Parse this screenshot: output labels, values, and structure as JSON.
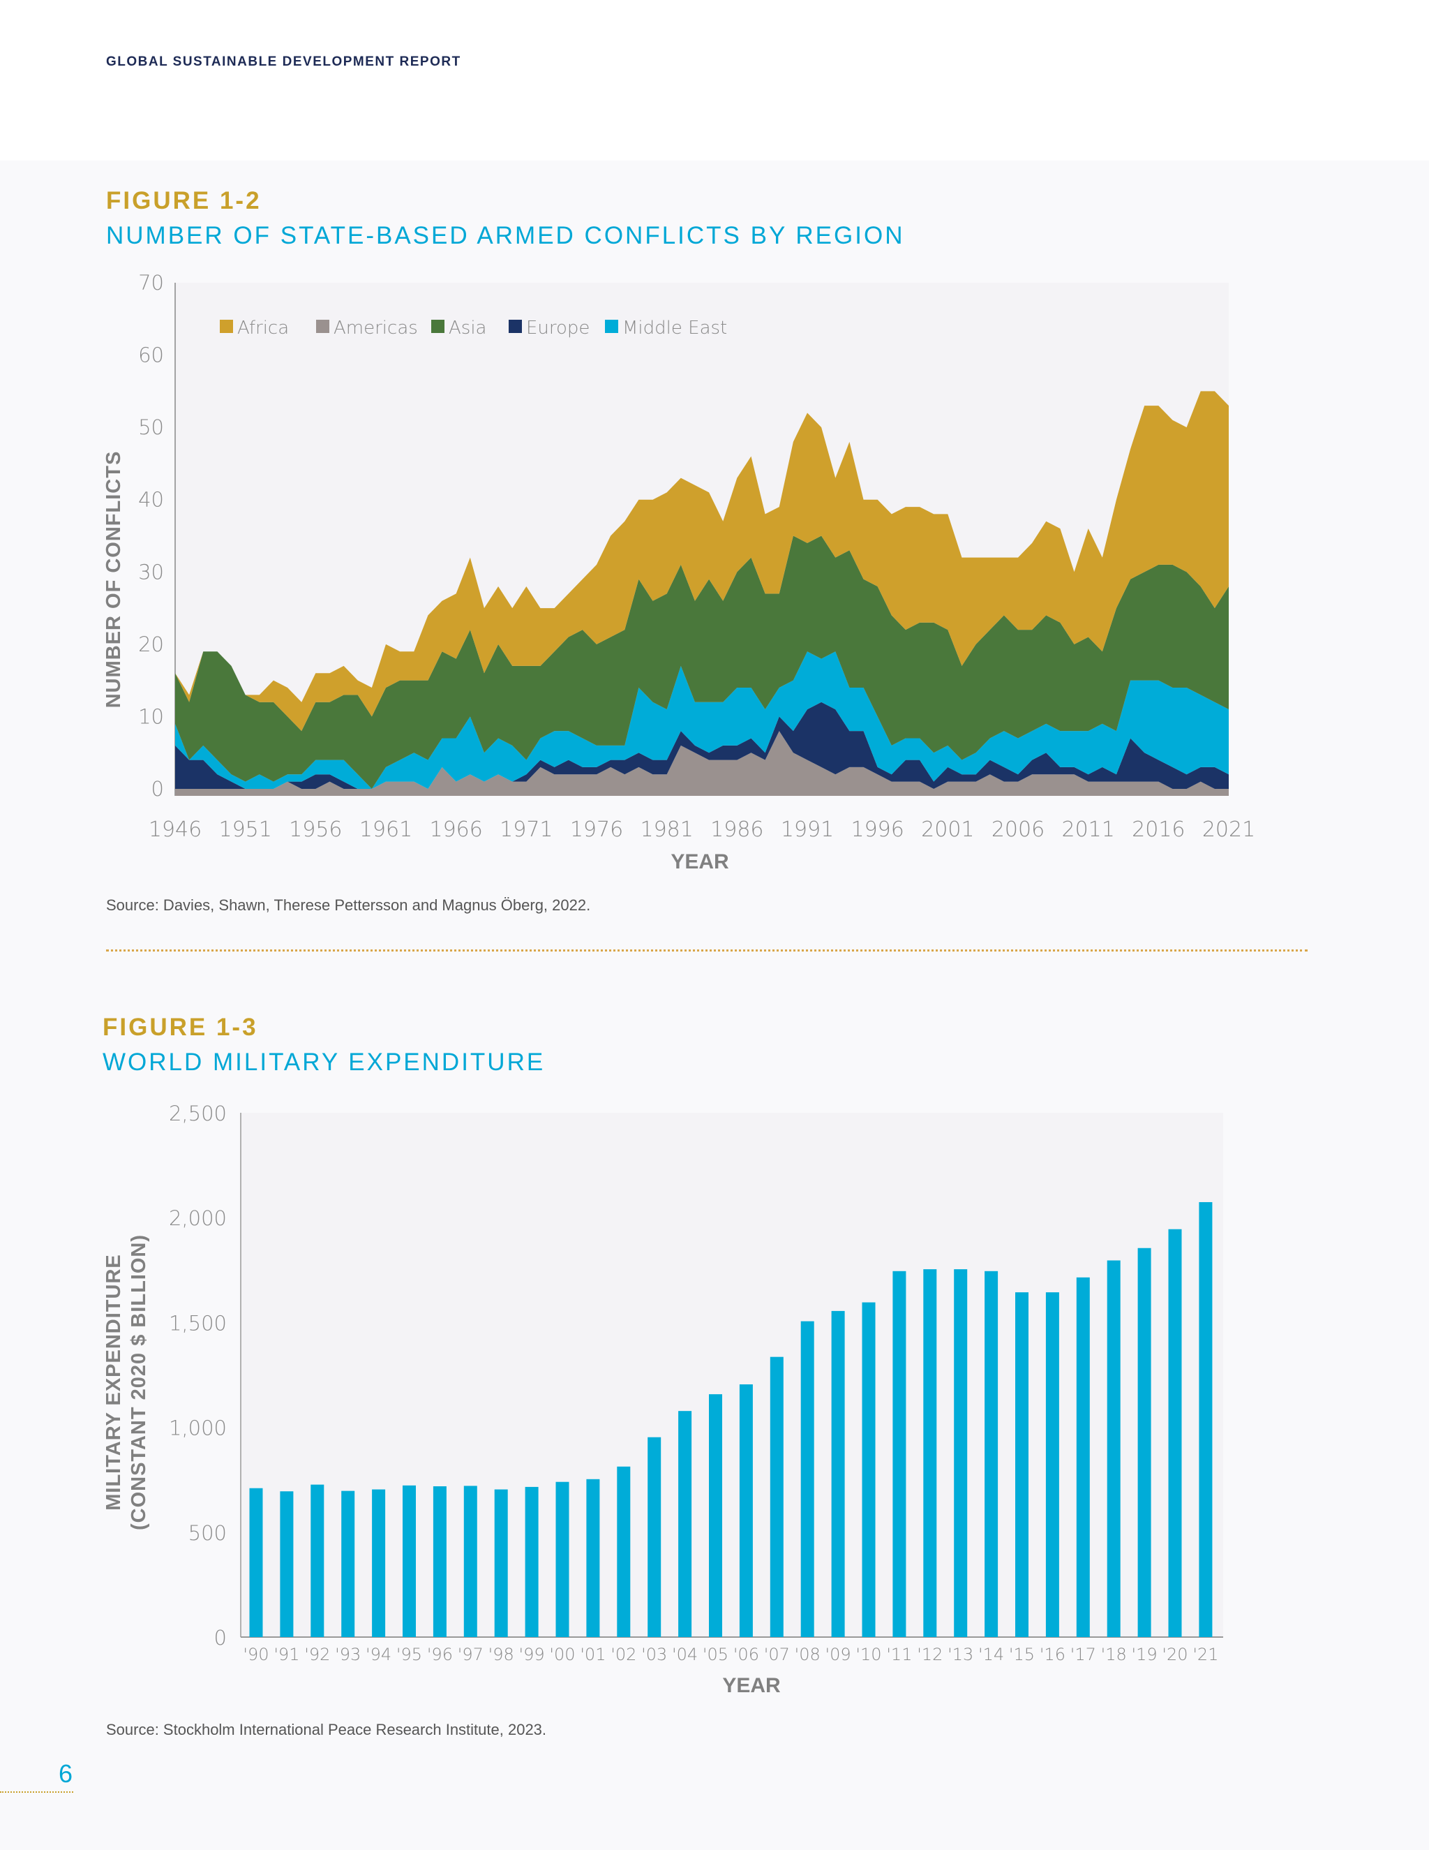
{
  "header": {
    "report_title": "GLOBAL SUSTAINABLE DEVELOPMENT REPORT"
  },
  "figure1": {
    "number": "FIGURE 1-2",
    "title": "NUMBER OF STATE-BASED ARMED CONFLICTS BY REGION",
    "source": "Source: Davies, Shawn, Therese Pettersson and Magnus Öberg, 2022."
  },
  "figure2": {
    "number": "FIGURE 1-3",
    "title": "WORLD MILITARY EXPENDITURE",
    "source": "Source: Stockholm International Peace Research Institute, 2023."
  },
  "page_number": "6",
  "chart_data": [
    {
      "type": "area",
      "stacked": true,
      "xlabel": "YEAR",
      "ylabel": "NUMBER OF CONFLICTS",
      "ylim": [
        0,
        70
      ],
      "xlim": [
        1946,
        2021
      ],
      "yticks": [
        "0",
        "10",
        "20",
        "30",
        "40",
        "50",
        "60",
        "70"
      ],
      "xticks": [
        "1946",
        "1951",
        "1956",
        "1961",
        "1966",
        "1971",
        "1976",
        "1981",
        "1986",
        "1991",
        "1996",
        "2001",
        "2006",
        "2011",
        "2016",
        "2021"
      ],
      "legend_position": "top-left",
      "grid": false,
      "x": [
        1946,
        1947,
        1948,
        1949,
        1950,
        1951,
        1952,
        1953,
        1954,
        1955,
        1956,
        1957,
        1958,
        1959,
        1960,
        1961,
        1962,
        1963,
        1964,
        1965,
        1966,
        1967,
        1968,
        1969,
        1970,
        1971,
        1972,
        1973,
        1974,
        1975,
        1976,
        1977,
        1978,
        1979,
        1980,
        1981,
        1982,
        1983,
        1984,
        1985,
        1986,
        1987,
        1988,
        1989,
        1990,
        1991,
        1992,
        1993,
        1994,
        1995,
        1996,
        1997,
        1998,
        1999,
        2000,
        2001,
        2002,
        2003,
        2004,
        2005,
        2006,
        2007,
        2008,
        2009,
        2010,
        2011,
        2012,
        2013,
        2014,
        2015,
        2016,
        2017,
        2018,
        2019,
        2020,
        2021
      ],
      "series": [
        {
          "name": "Americas",
          "color": "#9a918f",
          "values": [
            0,
            0,
            0,
            0,
            0,
            0,
            0,
            0,
            1,
            0,
            0,
            1,
            0,
            0,
            0,
            1,
            1,
            1,
            0,
            3,
            1,
            2,
            1,
            2,
            1,
            1,
            3,
            2,
            2,
            2,
            2,
            3,
            2,
            3,
            2,
            2,
            6,
            5,
            4,
            4,
            4,
            5,
            4,
            8,
            5,
            4,
            3,
            2,
            3,
            3,
            2,
            1,
            1,
            1,
            0,
            1,
            1,
            1,
            2,
            1,
            1,
            2,
            2,
            2,
            2,
            1,
            1,
            1,
            1,
            1,
            1,
            0,
            0,
            1,
            0,
            0
          ]
        },
        {
          "name": "Europe",
          "color": "#1b3366",
          "values": [
            6,
            4,
            4,
            2,
            1,
            0,
            0,
            0,
            0,
            1,
            2,
            1,
            1,
            0,
            0,
            0,
            0,
            0,
            0,
            0,
            0,
            0,
            0,
            0,
            0,
            1,
            1,
            1,
            2,
            1,
            1,
            1,
            2,
            2,
            2,
            2,
            2,
            1,
            1,
            2,
            2,
            2,
            1,
            2,
            3,
            7,
            9,
            9,
            5,
            5,
            1,
            1,
            3,
            3,
            1,
            2,
            1,
            1,
            2,
            2,
            1,
            2,
            3,
            1,
            1,
            1,
            2,
            1,
            6,
            4,
            3,
            3,
            2,
            2,
            3,
            2
          ]
        },
        {
          "name": "Middle East",
          "color": "#00acd8",
          "values": [
            3,
            0,
            2,
            2,
            1,
            1,
            2,
            1,
            1,
            1,
            2,
            2,
            3,
            2,
            0,
            2,
            3,
            4,
            4,
            4,
            6,
            8,
            4,
            5,
            5,
            2,
            3,
            5,
            4,
            4,
            3,
            2,
            2,
            9,
            8,
            7,
            9,
            6,
            7,
            6,
            8,
            7,
            6,
            4,
            7,
            8,
            6,
            8,
            6,
            6,
            7,
            4,
            3,
            3,
            4,
            3,
            2,
            3,
            3,
            5,
            5,
            4,
            4,
            5,
            5,
            6,
            6,
            6,
            8,
            10,
            11,
            11,
            12,
            10,
            9,
            9
          ]
        },
        {
          "name": "Asia",
          "color": "#4a783b",
          "values": [
            7,
            8,
            13,
            15,
            15,
            12,
            10,
            11,
            8,
            6,
            8,
            8,
            9,
            11,
            10,
            11,
            11,
            10,
            11,
            12,
            11,
            12,
            11,
            13,
            11,
            13,
            10,
            11,
            13,
            15,
            14,
            15,
            16,
            15,
            14,
            16,
            14,
            14,
            17,
            14,
            16,
            18,
            16,
            13,
            20,
            15,
            17,
            13,
            19,
            15,
            18,
            18,
            15,
            16,
            18,
            16,
            13,
            15,
            15,
            16,
            15,
            14,
            15,
            15,
            12,
            13,
            10,
            17,
            14,
            15,
            16,
            17,
            16,
            15,
            13,
            17
          ]
        },
        {
          "name": "Africa",
          "color": "#cfa02c",
          "values": [
            0,
            1,
            0,
            0,
            0,
            0,
            1,
            3,
            4,
            4,
            4,
            4,
            4,
            2,
            4,
            6,
            4,
            4,
            9,
            7,
            9,
            10,
            9,
            8,
            8,
            11,
            8,
            6,
            6,
            7,
            11,
            14,
            15,
            11,
            14,
            14,
            12,
            16,
            12,
            11,
            13,
            14,
            11,
            12,
            13,
            18,
            15,
            11,
            15,
            11,
            12,
            14,
            17,
            16,
            15,
            16,
            15,
            12,
            10,
            8,
            10,
            12,
            13,
            13,
            10,
            15,
            13,
            15,
            18,
            23,
            22,
            20,
            20,
            27,
            30,
            25
          ]
        }
      ]
    },
    {
      "type": "bar",
      "xlabel": "YEAR",
      "ylabel": [
        "MILITARY EXPENDITURE",
        "(CONSTANT 2020 $ BILLION)"
      ],
      "ylim": [
        0,
        2500
      ],
      "yticks": [
        "0",
        "500",
        "1,000",
        "1,500",
        "2,000",
        "2,500"
      ],
      "grid": false,
      "color": "#00acd8",
      "categories": [
        "'90",
        "'91",
        "'92",
        "'93",
        "'94",
        "'95",
        "'96",
        "'97",
        "'98",
        "'99",
        "'00",
        "'01",
        "'02",
        "'03",
        "'04",
        "'05",
        "'06",
        "'07",
        "'08",
        "'09",
        "'10",
        "'11",
        "'12",
        "'13",
        "'14",
        "'15",
        "'16",
        "'17",
        "'18",
        "'19",
        "'20",
        "'21"
      ],
      "values": [
        710,
        695,
        727,
        697,
        704,
        723,
        719,
        721,
        704,
        716,
        740,
        753,
        813,
        953,
        1078,
        1158,
        1205,
        1336,
        1506,
        1555,
        1596,
        1745,
        1754,
        1754,
        1745,
        1644,
        1644,
        1715,
        1796,
        1855,
        1945,
        2074
      ]
    }
  ]
}
